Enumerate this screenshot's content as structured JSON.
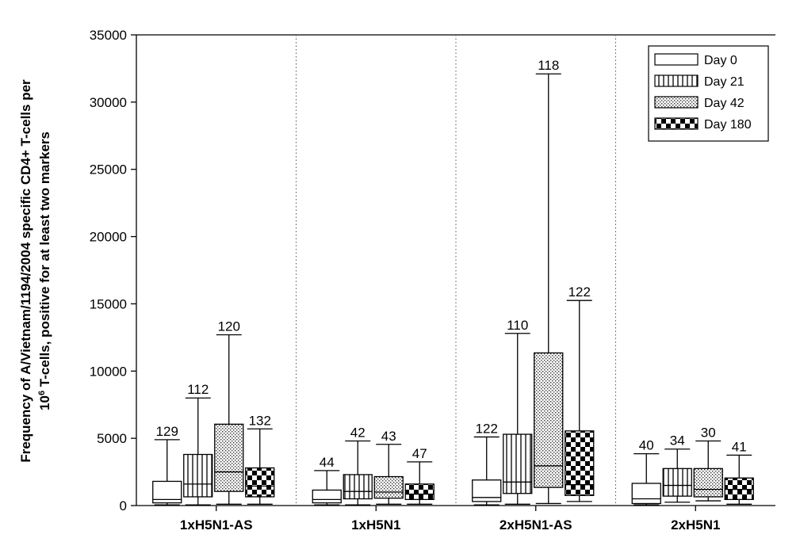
{
  "chart_data": {
    "type": "box",
    "ylabel_line1": "Frequency of A/Vietnam/1194/2004 specific CD4+ T-cells per",
    "ylabel_line2_pre": "10",
    "ylabel_line2_sup": "6",
    "ylabel_line2_post": " T-cells, positive for at least two markers",
    "ylim": [
      0,
      35000
    ],
    "yticks": [
      "0",
      "5000",
      "10000",
      "15000",
      "20000",
      "25000",
      "30000",
      "35000"
    ],
    "categories": [
      "1xH5N1-AS",
      "1xH5N1",
      "2xH5N1-AS",
      "2xH5N1"
    ],
    "legend_position": "top-right",
    "series": [
      {
        "name": "Day 0",
        "pattern": "none"
      },
      {
        "name": "Day 21",
        "pattern": "vertical-lines"
      },
      {
        "name": "Day 42",
        "pattern": "dots"
      },
      {
        "name": "Day 180",
        "pattern": "checker"
      }
    ],
    "boxes": [
      {
        "group": "1xH5N1-AS",
        "series": "Day 0",
        "n": "129",
        "min": 50,
        "q1": 200,
        "median": 450,
        "q3": 1800,
        "max": 4900
      },
      {
        "group": "1xH5N1-AS",
        "series": "Day 21",
        "n": "112",
        "min": 50,
        "q1": 650,
        "median": 1600,
        "q3": 3800,
        "max": 8000
      },
      {
        "group": "1xH5N1-AS",
        "series": "Day 42",
        "n": "120",
        "min": 100,
        "q1": 1050,
        "median": 2500,
        "q3": 6050,
        "max": 12700
      },
      {
        "group": "1xH5N1-AS",
        "series": "Day 180",
        "n": "132",
        "min": 100,
        "q1": 650,
        "median": 1450,
        "q3": 2800,
        "max": 5700
      },
      {
        "group": "1xH5N1",
        "series": "Day 0",
        "n": "44",
        "min": 50,
        "q1": 200,
        "median": 450,
        "q3": 1150,
        "max": 2600
      },
      {
        "group": "1xH5N1",
        "series": "Day 21",
        "n": "42",
        "min": 50,
        "q1": 500,
        "median": 1050,
        "q3": 2300,
        "max": 4800
      },
      {
        "group": "1xH5N1",
        "series": "Day 42",
        "n": "43",
        "min": 100,
        "q1": 550,
        "median": 1000,
        "q3": 2150,
        "max": 4550
      },
      {
        "group": "1xH5N1",
        "series": "Day 180",
        "n": "47",
        "min": 100,
        "q1": 450,
        "median": 850,
        "q3": 1600,
        "max": 3250
      },
      {
        "group": "2xH5N1-AS",
        "series": "Day 0",
        "n": "122",
        "min": 50,
        "q1": 300,
        "median": 600,
        "q3": 1900,
        "max": 5100
      },
      {
        "group": "2xH5N1-AS",
        "series": "Day 21",
        "n": "110",
        "min": 100,
        "q1": 900,
        "median": 1750,
        "q3": 5300,
        "max": 12800
      },
      {
        "group": "2xH5N1-AS",
        "series": "Day 42",
        "n": "118",
        "min": 150,
        "q1": 1350,
        "median": 2950,
        "q3": 11350,
        "max": 32100
      },
      {
        "group": "2xH5N1-AS",
        "series": "Day 180",
        "n": "122",
        "min": 300,
        "q1": 750,
        "median": 1550,
        "q3": 5550,
        "max": 15250
      },
      {
        "group": "2xH5N1",
        "series": "Day 0",
        "n": "40",
        "min": 50,
        "q1": 150,
        "median": 500,
        "q3": 1650,
        "max": 3850
      },
      {
        "group": "2xH5N1",
        "series": "Day 21",
        "n": "34",
        "min": 250,
        "q1": 700,
        "median": 1500,
        "q3": 2750,
        "max": 4200
      },
      {
        "group": "2xH5N1",
        "series": "Day 42",
        "n": "30",
        "min": 350,
        "q1": 650,
        "median": 1200,
        "q3": 2750,
        "max": 4800
      },
      {
        "group": "2xH5N1",
        "series": "Day 180",
        "n": "41",
        "min": 100,
        "q1": 450,
        "median": 1200,
        "q3": 2050,
        "max": 3750
      }
    ]
  }
}
